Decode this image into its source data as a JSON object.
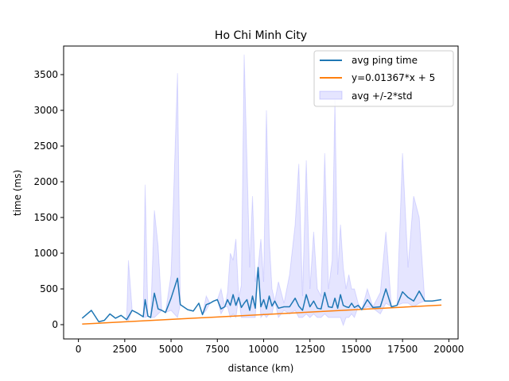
{
  "chart_data": {
    "type": "line",
    "title": "Ho Chi Minh City",
    "xlabel": "distance (km)",
    "ylabel": "time (ms)",
    "xlim": [
      -800,
      20500
    ],
    "ylim": [
      -200,
      3900
    ],
    "xticks": [
      0,
      2500,
      5000,
      7500,
      10000,
      12500,
      15000,
      17500,
      20000
    ],
    "yticks": [
      0,
      500,
      1000,
      1500,
      2000,
      2500,
      3000,
      3500
    ],
    "grid": false,
    "legend_position": "top-right",
    "colors": {
      "avg": "#1f77b4",
      "fit": "#ff7f0e",
      "band": "#0000ff"
    },
    "legend": [
      {
        "key": "avg",
        "label": "avg ping time"
      },
      {
        "key": "fit",
        "label": "y=0.01367*x + 5"
      },
      {
        "key": "band",
        "label": "avg +/-2*std"
      }
    ],
    "fit": {
      "slope": 0.01367,
      "intercept": 5,
      "x_range": [
        200,
        19600
      ]
    },
    "series": [
      {
        "key": "avg",
        "points": [
          [
            200,
            90
          ],
          [
            700,
            200
          ],
          [
            1100,
            40
          ],
          [
            1400,
            60
          ],
          [
            1700,
            150
          ],
          [
            2000,
            90
          ],
          [
            2300,
            130
          ],
          [
            2600,
            70
          ],
          [
            2900,
            200
          ],
          [
            3200,
            160
          ],
          [
            3500,
            110
          ],
          [
            3600,
            350
          ],
          [
            3750,
            120
          ],
          [
            3900,
            100
          ],
          [
            4100,
            440
          ],
          [
            4300,
            220
          ],
          [
            4500,
            200
          ],
          [
            4700,
            170
          ],
          [
            5000,
            370
          ],
          [
            5350,
            650
          ],
          [
            5500,
            280
          ],
          [
            5900,
            210
          ],
          [
            6200,
            190
          ],
          [
            6500,
            300
          ],
          [
            6700,
            140
          ],
          [
            6900,
            280
          ],
          [
            7100,
            300
          ],
          [
            7300,
            330
          ],
          [
            7500,
            350
          ],
          [
            7700,
            220
          ],
          [
            7900,
            250
          ],
          [
            8050,
            350
          ],
          [
            8200,
            270
          ],
          [
            8350,
            420
          ],
          [
            8500,
            270
          ],
          [
            8650,
            380
          ],
          [
            8800,
            240
          ],
          [
            8950,
            300
          ],
          [
            9100,
            350
          ],
          [
            9250,
            200
          ],
          [
            9400,
            400
          ],
          [
            9550,
            230
          ],
          [
            9700,
            800
          ],
          [
            9850,
            250
          ],
          [
            10000,
            350
          ],
          [
            10150,
            220
          ],
          [
            10300,
            400
          ],
          [
            10450,
            260
          ],
          [
            10600,
            330
          ],
          [
            10800,
            230
          ],
          [
            11100,
            250
          ],
          [
            11400,
            250
          ],
          [
            11700,
            370
          ],
          [
            11900,
            260
          ],
          [
            12100,
            200
          ],
          [
            12300,
            420
          ],
          [
            12500,
            250
          ],
          [
            12700,
            330
          ],
          [
            12900,
            230
          ],
          [
            13100,
            220
          ],
          [
            13300,
            450
          ],
          [
            13500,
            250
          ],
          [
            13700,
            240
          ],
          [
            13850,
            370
          ],
          [
            14000,
            230
          ],
          [
            14150,
            420
          ],
          [
            14300,
            270
          ],
          [
            14450,
            250
          ],
          [
            14600,
            240
          ],
          [
            14750,
            300
          ],
          [
            14900,
            240
          ],
          [
            15100,
            270
          ],
          [
            15300,
            210
          ],
          [
            15600,
            350
          ],
          [
            15900,
            240
          ],
          [
            16300,
            250
          ],
          [
            16600,
            500
          ],
          [
            16900,
            250
          ],
          [
            17200,
            270
          ],
          [
            17500,
            460
          ],
          [
            17800,
            380
          ],
          [
            18100,
            330
          ],
          [
            18400,
            470
          ],
          [
            18700,
            330
          ],
          [
            19100,
            330
          ],
          [
            19600,
            350
          ]
        ]
      },
      {
        "key": "band",
        "upper": [
          [
            200,
            90
          ],
          [
            700,
            200
          ],
          [
            1100,
            40
          ],
          [
            1400,
            60
          ],
          [
            1700,
            150
          ],
          [
            2000,
            90
          ],
          [
            2300,
            130
          ],
          [
            2600,
            70
          ],
          [
            2700,
            900
          ],
          [
            2900,
            200
          ],
          [
            3200,
            160
          ],
          [
            3500,
            110
          ],
          [
            3600,
            1960
          ],
          [
            3750,
            120
          ],
          [
            3900,
            100
          ],
          [
            4100,
            1600
          ],
          [
            4300,
            1100
          ],
          [
            4500,
            200
          ],
          [
            4700,
            170
          ],
          [
            5000,
            700
          ],
          [
            5350,
            3520
          ],
          [
            5500,
            280
          ],
          [
            5900,
            210
          ],
          [
            6200,
            190
          ],
          [
            6500,
            300
          ],
          [
            6700,
            140
          ],
          [
            6900,
            400
          ],
          [
            7100,
            300
          ],
          [
            7300,
            330
          ],
          [
            7500,
            350
          ],
          [
            7700,
            500
          ],
          [
            7900,
            250
          ],
          [
            8050,
            450
          ],
          [
            8200,
            1000
          ],
          [
            8350,
            900
          ],
          [
            8500,
            1200
          ],
          [
            8650,
            380
          ],
          [
            8800,
            550
          ],
          [
            8950,
            3780
          ],
          [
            9100,
            2300
          ],
          [
            9250,
            800
          ],
          [
            9400,
            1800
          ],
          [
            9550,
            600
          ],
          [
            9700,
            800
          ],
          [
            9850,
            1200
          ],
          [
            10000,
            600
          ],
          [
            10150,
            3000
          ],
          [
            10300,
            1200
          ],
          [
            10450,
            500
          ],
          [
            10600,
            330
          ],
          [
            10800,
            600
          ],
          [
            11100,
            300
          ],
          [
            11400,
            700
          ],
          [
            11700,
            1400
          ],
          [
            11900,
            2250
          ],
          [
            12100,
            400
          ],
          [
            12300,
            2300
          ],
          [
            12500,
            500
          ],
          [
            12700,
            1300
          ],
          [
            12900,
            500
          ],
          [
            13100,
            400
          ],
          [
            13300,
            2400
          ],
          [
            13500,
            500
          ],
          [
            13700,
            900
          ],
          [
            13850,
            3150
          ],
          [
            14000,
            700
          ],
          [
            14150,
            1400
          ],
          [
            14300,
            800
          ],
          [
            14450,
            500
          ],
          [
            14600,
            700
          ],
          [
            14750,
            500
          ],
          [
            14900,
            500
          ],
          [
            15100,
            300
          ],
          [
            15300,
            210
          ],
          [
            15600,
            500
          ],
          [
            15900,
            250
          ],
          [
            16300,
            450
          ],
          [
            16600,
            1300
          ],
          [
            16900,
            250
          ],
          [
            17200,
            270
          ],
          [
            17500,
            2400
          ],
          [
            17800,
            800
          ],
          [
            18100,
            1800
          ],
          [
            18400,
            1500
          ],
          [
            18700,
            330
          ],
          [
            19100,
            330
          ],
          [
            19600,
            350
          ]
        ],
        "lower": [
          [
            200,
            90
          ],
          [
            700,
            200
          ],
          [
            1100,
            40
          ],
          [
            1400,
            60
          ],
          [
            1700,
            150
          ],
          [
            2000,
            90
          ],
          [
            2300,
            130
          ],
          [
            2600,
            70
          ],
          [
            2700,
            60
          ],
          [
            2900,
            200
          ],
          [
            3200,
            160
          ],
          [
            3500,
            110
          ],
          [
            3600,
            100
          ],
          [
            3750,
            120
          ],
          [
            3900,
            100
          ],
          [
            4100,
            100
          ],
          [
            4300,
            150
          ],
          [
            4500,
            200
          ],
          [
            4700,
            170
          ],
          [
            5000,
            200
          ],
          [
            5350,
            100
          ],
          [
            5500,
            280
          ],
          [
            5900,
            210
          ],
          [
            6200,
            190
          ],
          [
            6500,
            300
          ],
          [
            6700,
            140
          ],
          [
            6900,
            200
          ],
          [
            7100,
            300
          ],
          [
            7300,
            330
          ],
          [
            7500,
            350
          ],
          [
            7700,
            150
          ],
          [
            7900,
            250
          ],
          [
            8050,
            250
          ],
          [
            8200,
            100
          ],
          [
            8350,
            150
          ],
          [
            8500,
            100
          ],
          [
            8650,
            380
          ],
          [
            8800,
            100
          ],
          [
            8950,
            100
          ],
          [
            9100,
            100
          ],
          [
            9250,
            100
          ],
          [
            9400,
            100
          ],
          [
            9550,
            100
          ],
          [
            9700,
            800
          ],
          [
            9850,
            100
          ],
          [
            10000,
            150
          ],
          [
            10150,
            100
          ],
          [
            10300,
            150
          ],
          [
            10450,
            150
          ],
          [
            10600,
            330
          ],
          [
            10800,
            100
          ],
          [
            11100,
            200
          ],
          [
            11400,
            150
          ],
          [
            11700,
            200
          ],
          [
            11900,
            100
          ],
          [
            12100,
            100
          ],
          [
            12300,
            150
          ],
          [
            12500,
            100
          ],
          [
            12700,
            150
          ],
          [
            12900,
            100
          ],
          [
            13100,
            100
          ],
          [
            13300,
            150
          ],
          [
            13500,
            100
          ],
          [
            13700,
            100
          ],
          [
            13850,
            100
          ],
          [
            14000,
            100
          ],
          [
            14150,
            100
          ],
          [
            14300,
            -10
          ],
          [
            14450,
            100
          ],
          [
            14600,
            100
          ],
          [
            14750,
            150
          ],
          [
            14900,
            100
          ],
          [
            15100,
            250
          ],
          [
            15300,
            210
          ],
          [
            15600,
            250
          ],
          [
            15900,
            230
          ],
          [
            16300,
            150
          ],
          [
            16600,
            300
          ],
          [
            16900,
            250
          ],
          [
            17200,
            270
          ],
          [
            17500,
            300
          ],
          [
            17800,
            300
          ],
          [
            18100,
            250
          ],
          [
            18400,
            300
          ],
          [
            18700,
            330
          ],
          [
            19100,
            330
          ],
          [
            19600,
            350
          ]
        ]
      }
    ]
  }
}
